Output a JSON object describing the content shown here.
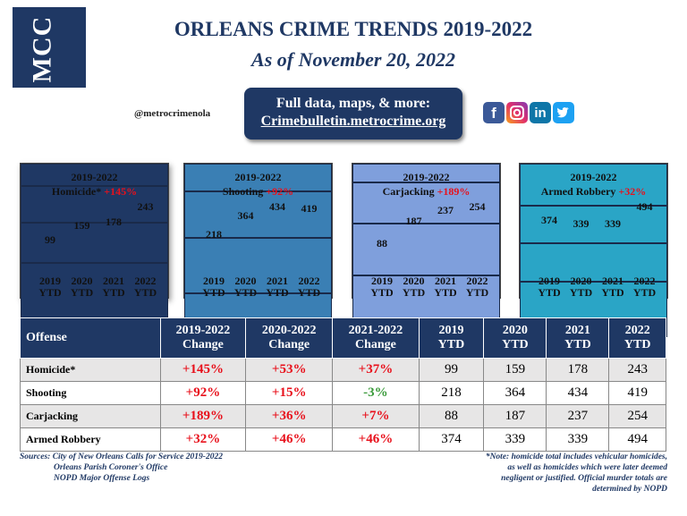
{
  "logo": "MCC",
  "header": {
    "title": "ORLEANS CRIME TRENDS 2019-2022",
    "subtitle": "As of November 20, 2022",
    "handle": "@metrocrimenola",
    "link_lines": [
      "Full data, maps, & more:",
      "Crimebulletin.metrocrime.org"
    ],
    "social": [
      "f",
      "in"
    ]
  },
  "chart_data": [
    {
      "type": "bar",
      "title": "2019-2022",
      "label": "Homicide*",
      "change": "+145%",
      "change_color": "#e8101b",
      "color": "#1f3864",
      "categories": [
        "2019\nYTD",
        "2020\nYTD",
        "2021\nYTD",
        "2022\nYTD"
      ],
      "values": [
        99,
        159,
        178,
        243
      ]
    },
    {
      "type": "bar",
      "title": "2019-2022",
      "label": "Shooting",
      "change": "+92%",
      "change_color": "#e8101b",
      "color": "#3a7fb4",
      "categories": [
        "2019\nYTD",
        "2020\nYTD",
        "2021\nYTD",
        "2022\nYTD"
      ],
      "values": [
        218,
        364,
        434,
        419
      ]
    },
    {
      "type": "bar",
      "title": "2019-2022",
      "label": "Carjacking",
      "change": "+189%",
      "change_color": "#e8101b",
      "color": "#7f9fdc",
      "categories": [
        "2019\nYTD",
        "2020\nYTD",
        "2021\nYTD",
        "2022\nYTD"
      ],
      "values": [
        88,
        187,
        237,
        254
      ]
    },
    {
      "type": "bar",
      "title": "2019-2022",
      "label": "Armed Robbery",
      "change": "+32%",
      "change_color": "#e8101b",
      "color": "#2aa5c6",
      "categories": [
        "2019\nYTD",
        "2020\nYTD",
        "2021\nYTD",
        "2022\nYTD"
      ],
      "values": [
        374,
        339,
        339,
        494
      ]
    }
  ],
  "table": {
    "header": [
      "Offense",
      "2019-2022\nChange",
      "2020-2022\nChange",
      "2021-2022\nChange",
      "2019\nYTD",
      "2020\nYTD",
      "2021\nYTD",
      "2022\nYTD"
    ],
    "rows": [
      [
        "Homicide*",
        "+145%",
        "+53%",
        "+37%",
        99,
        159,
        178,
        243
      ],
      [
        "Shooting",
        "+92%",
        "+15%",
        "-3%",
        218,
        364,
        434,
        419
      ],
      [
        "Carjacking",
        "+189%",
        "+36%",
        "+7%",
        88,
        187,
        237,
        254
      ],
      [
        "Armed Robbery",
        "+32%",
        "+46%",
        "+46%",
        374,
        339,
        339,
        494
      ]
    ],
    "increase_color": "#e8101b",
    "decrease_color": "#3a9a3a",
    "stripe_color": "#e7e6e6"
  },
  "footer": {
    "sources_label": "Sources:",
    "sources": [
      "City of New Orleans Calls for Service 2019-2022",
      "Orleans Parish Coroner's Office",
      "NOPD Major Offense Logs"
    ],
    "note": [
      "*Note: homicide total includes vehicular homicides,",
      "as well as homicides which were later deemed",
      "negligent or justified.  Official murder totals are",
      "determined by NOPD"
    ]
  }
}
